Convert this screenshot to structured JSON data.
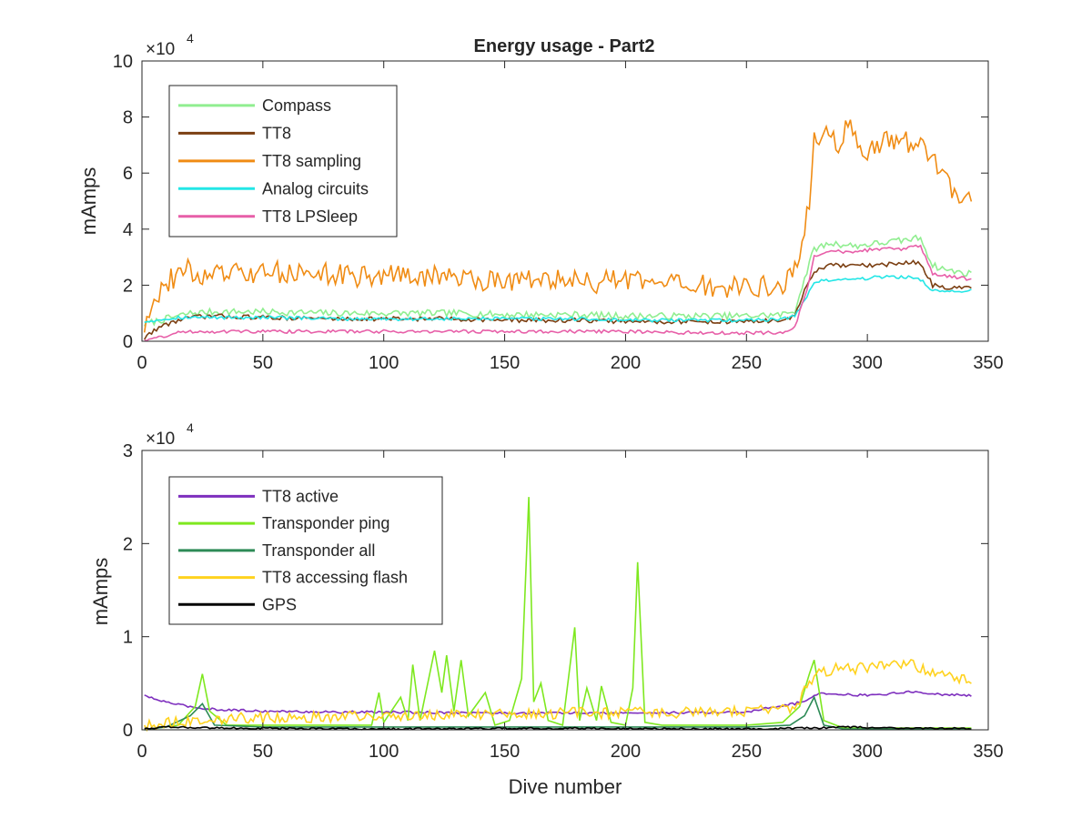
{
  "chart_data": [
    {
      "type": "line",
      "title": "Energy usage - Part2",
      "xlabel": "",
      "ylabel": "mAmps",
      "exponent_label": "×10",
      "exponent_power": "4",
      "xlim": [
        0,
        350
      ],
      "ylim": [
        0,
        100000
      ],
      "xticks": [
        0,
        50,
        100,
        150,
        200,
        250,
        300,
        350
      ],
      "yticks": [
        0,
        20000,
        40000,
        60000,
        80000,
        100000
      ],
      "xtick_labels": [
        "0",
        "50",
        "100",
        "150",
        "200",
        "250",
        "300",
        "350"
      ],
      "ytick_labels": [
        "0",
        "2",
        "4",
        "6",
        "8",
        "10"
      ],
      "grid": false,
      "legend_position": "top-left",
      "series": [
        {
          "name": "Compass",
          "color": "#90ee90",
          "x": [
            1,
            5,
            10,
            15,
            20,
            30,
            50,
            80,
            100,
            130,
            150,
            180,
            200,
            230,
            250,
            265,
            270,
            275,
            278,
            285,
            295,
            305,
            315,
            322,
            327,
            335,
            343
          ],
          "y": [
            6000,
            7000,
            8000,
            9000,
            10000,
            10500,
            10500,
            10000,
            10000,
            10000,
            9500,
            9500,
            9000,
            9000,
            9000,
            9500,
            11000,
            25000,
            33000,
            35000,
            34000,
            35000,
            36000,
            37000,
            27000,
            25000,
            24000
          ]
        },
        {
          "name": "TT8",
          "color": "#7b3f12",
          "x": [
            1,
            5,
            10,
            15,
            20,
            30,
            50,
            80,
            100,
            130,
            150,
            180,
            200,
            230,
            250,
            265,
            270,
            275,
            278,
            285,
            295,
            305,
            315,
            322,
            327,
            335,
            343
          ],
          "y": [
            1000,
            4000,
            6000,
            7500,
            8500,
            9000,
            8500,
            8000,
            8000,
            8000,
            7500,
            7500,
            7000,
            7000,
            7000,
            7500,
            9000,
            20000,
            25000,
            27000,
            27000,
            27000,
            28000,
            28000,
            20000,
            19000,
            19000
          ]
        },
        {
          "name": "TT8 sampling",
          "color": "#f08c14",
          "x": [
            1,
            3,
            5,
            8,
            12,
            15,
            18,
            22,
            30,
            40,
            50,
            60,
            70,
            80,
            90,
            100,
            110,
            120,
            130,
            140,
            150,
            160,
            170,
            180,
            190,
            200,
            210,
            220,
            230,
            240,
            250,
            260,
            265,
            270,
            273,
            276,
            278,
            282,
            288,
            293,
            298,
            303,
            308,
            313,
            318,
            322,
            326,
            330,
            335,
            340,
            343
          ],
          "y": [
            5000,
            12000,
            16000,
            18000,
            22000,
            24000,
            26000,
            23000,
            24000,
            24000,
            24000,
            25000,
            24000,
            24000,
            23000,
            24000,
            23000,
            23000,
            23000,
            22000,
            22000,
            22000,
            22000,
            21000,
            21000,
            22000,
            20000,
            20000,
            20000,
            19000,
            19000,
            20000,
            20000,
            25000,
            35000,
            50000,
            72000,
            75000,
            70000,
            78000,
            67000,
            69000,
            71000,
            72000,
            70000,
            72000,
            65000,
            62000,
            55000,
            51000,
            52000
          ]
        },
        {
          "name": "Analog circuits",
          "color": "#23e6e6",
          "x": [
            1,
            5,
            10,
            15,
            20,
            30,
            50,
            80,
            100,
            130,
            150,
            180,
            200,
            230,
            250,
            265,
            270,
            275,
            278,
            285,
            295,
            305,
            315,
            322,
            327,
            335,
            343
          ],
          "y": [
            7000,
            7500,
            8000,
            8500,
            8500,
            8500,
            8500,
            8000,
            8000,
            8000,
            8000,
            8000,
            7500,
            7500,
            7500,
            8000,
            9000,
            16000,
            21000,
            22000,
            22000,
            23000,
            23000,
            22000,
            18000,
            18000,
            18000
          ]
        },
        {
          "name": "TT8 LPSleep",
          "color": "#e75fa8",
          "x": [
            1,
            5,
            10,
            15,
            20,
            30,
            50,
            80,
            100,
            130,
            150,
            180,
            200,
            230,
            250,
            265,
            270,
            275,
            278,
            285,
            295,
            305,
            315,
            322,
            327,
            335,
            343
          ],
          "y": [
            500,
            1000,
            2000,
            3000,
            3500,
            3500,
            3500,
            3500,
            3500,
            3500,
            3500,
            3500,
            3500,
            3000,
            3000,
            3000,
            5000,
            18000,
            30000,
            32000,
            32000,
            33000,
            33000,
            34000,
            24000,
            23000,
            22000
          ]
        }
      ]
    },
    {
      "type": "line",
      "title": "",
      "xlabel": "Dive number",
      "ylabel": "mAmps",
      "exponent_label": "×10",
      "exponent_power": "4",
      "xlim": [
        0,
        350
      ],
      "ylim": [
        0,
        30000
      ],
      "xticks": [
        0,
        50,
        100,
        150,
        200,
        250,
        300,
        350
      ],
      "yticks": [
        0,
        10000,
        20000,
        30000
      ],
      "xtick_labels": [
        "0",
        "50",
        "100",
        "150",
        "200",
        "250",
        "300",
        "350"
      ],
      "ytick_labels": [
        "0",
        "1",
        "2",
        "3"
      ],
      "grid": false,
      "legend_position": "top-left",
      "series": [
        {
          "name": "TT8 active",
          "color": "#7e2fbe",
          "x": [
            1,
            5,
            10,
            15,
            20,
            25,
            30,
            50,
            80,
            100,
            150,
            200,
            250,
            262,
            270,
            276,
            280,
            290,
            300,
            310,
            320,
            330,
            343
          ],
          "y": [
            3700,
            3300,
            3000,
            2700,
            2500,
            2300,
            2200,
            2000,
            1900,
            1900,
            1800,
            1800,
            1900,
            2500,
            2800,
            3300,
            4000,
            3800,
            3700,
            3900,
            4100,
            3800,
            3700
          ]
        },
        {
          "name": "Transponder ping",
          "color": "#7ee81f",
          "x": [
            1,
            15,
            22,
            25,
            28,
            35,
            60,
            95,
            98,
            100,
            107,
            110,
            112,
            115,
            121,
            124,
            126,
            129,
            132,
            135,
            142,
            146,
            152,
            157,
            160,
            162,
            165,
            168,
            174,
            179,
            181,
            184,
            188,
            190,
            194,
            200,
            203,
            205,
            208,
            215,
            250,
            265,
            272,
            276,
            278,
            282,
            290,
            343
          ],
          "y": [
            0,
            500,
            2500,
            6000,
            2000,
            500,
            500,
            500,
            4000,
            800,
            3500,
            1000,
            7000,
            1000,
            8500,
            4000,
            8000,
            2000,
            7500,
            1500,
            4000,
            500,
            1000,
            5500,
            25000,
            3000,
            5000,
            1000,
            500,
            11000,
            1000,
            4500,
            1000,
            4700,
            800,
            500,
            4500,
            18000,
            800,
            500,
            500,
            800,
            2500,
            6000,
            7500,
            1000,
            200,
            200
          ]
        },
        {
          "name": "Transponder all",
          "color": "#2e8b57",
          "x": [
            1,
            10,
            20,
            25,
            30,
            50,
            100,
            150,
            200,
            250,
            268,
            274,
            278,
            282,
            290,
            343
          ],
          "y": [
            0,
            300,
            1500,
            2800,
            500,
            300,
            300,
            300,
            300,
            300,
            500,
            1500,
            3500,
            500,
            100,
            100
          ]
        },
        {
          "name": "TT8 accessing flash",
          "color": "#ffd21e",
          "x": [
            1,
            5,
            10,
            20,
            30,
            50,
            80,
            100,
            130,
            150,
            180,
            200,
            230,
            250,
            258,
            265,
            270,
            275,
            278,
            285,
            295,
            305,
            315,
            322,
            330,
            338,
            343
          ],
          "y": [
            300,
            500,
            800,
            1000,
            1200,
            1300,
            1400,
            1500,
            1600,
            1700,
            1800,
            1800,
            1900,
            2000,
            2200,
            2100,
            2500,
            4500,
            6000,
            6500,
            6600,
            6800,
            7200,
            6700,
            6000,
            5500,
            5200
          ]
        },
        {
          "name": "GPS",
          "color": "#000000",
          "x": [
            1,
            10,
            30,
            60,
            100,
            150,
            200,
            250,
            280,
            290,
            300,
            320,
            343
          ],
          "y": [
            100,
            300,
            200,
            150,
            100,
            150,
            150,
            100,
            200,
            300,
            250,
            200,
            150
          ]
        }
      ]
    }
  ]
}
